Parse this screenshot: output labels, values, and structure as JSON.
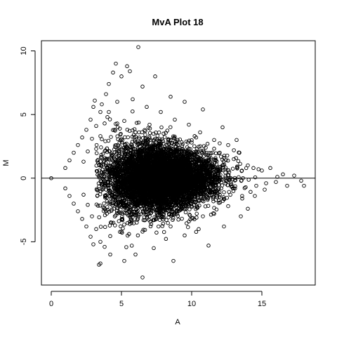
{
  "chart_data": {
    "type": "scatter",
    "title": "MvA Plot 18",
    "xlabel": "A",
    "ylabel": "M",
    "xlim": [
      -0.7,
      18.8
    ],
    "ylim": [
      -8.4,
      10.8
    ],
    "x_ticks": [
      0,
      5,
      10,
      15
    ],
    "x_tick_labels": [
      "0",
      "5",
      "10",
      "15"
    ],
    "y_ticks": [
      -5,
      0,
      5,
      10
    ],
    "y_tick_labels": [
      "-5",
      "0",
      "5",
      "10"
    ],
    "grid": false,
    "legend": "none",
    "reference_line": {
      "orientation": "horizontal",
      "y": 0
    },
    "marker": {
      "shape": "open-circle",
      "color": "#000000"
    },
    "series": [
      {
        "points": [
          [
            0,
            0
          ],
          [
            1.0,
            0.8
          ],
          [
            1.0,
            -0.8
          ],
          [
            1.3,
            1.4
          ],
          [
            1.3,
            -1.4
          ],
          [
            1.6,
            2.0
          ],
          [
            1.6,
            -2.0
          ],
          [
            1.9,
            2.6
          ],
          [
            1.9,
            -2.6
          ],
          [
            2.2,
            3.2
          ],
          [
            2.2,
            -3.2
          ],
          [
            2.5,
            3.8
          ],
          [
            2.5,
            -3.8
          ],
          [
            2.8,
            4.6
          ],
          [
            2.8,
            -4.6
          ],
          [
            3.0,
            5.6
          ],
          [
            3.0,
            -5.2
          ],
          [
            3.1,
            6.1
          ],
          [
            2.3,
            1.3
          ],
          [
            2.6,
            2.1
          ],
          [
            2.9,
            3.1
          ],
          [
            3.2,
            4.1
          ],
          [
            3.5,
            5.2
          ],
          [
            3.6,
            5.8
          ],
          [
            3.9,
            6.6
          ],
          [
            4.1,
            7.4
          ],
          [
            4.4,
            8.3
          ],
          [
            3.2,
            2.3
          ],
          [
            3.5,
            3.3
          ],
          [
            3.8,
            4.3
          ],
          [
            4.1,
            5.2
          ],
          [
            2.3,
            -1.3
          ],
          [
            2.6,
            -2.1
          ],
          [
            2.9,
            -3.0
          ],
          [
            3.2,
            -4.0
          ],
          [
            3.5,
            -5.0
          ],
          [
            3.8,
            -5.4
          ],
          [
            4.6,
            9.0
          ],
          [
            5.4,
            8.8
          ],
          [
            5.0,
            8.0
          ],
          [
            6.2,
            10.3
          ],
          [
            5.6,
            8.4
          ],
          [
            7.4,
            8.0
          ],
          [
            6.5,
            7.2
          ],
          [
            8.5,
            6.4
          ],
          [
            9.5,
            6.0
          ],
          [
            10.8,
            5.4
          ],
          [
            12.2,
            4.0
          ],
          [
            13.2,
            3.0
          ],
          [
            4.0,
            4.8
          ],
          [
            4.5,
            3.8
          ],
          [
            5.2,
            4.5
          ],
          [
            6.0,
            3.6
          ],
          [
            7.0,
            4.2
          ],
          [
            8.0,
            3.5
          ],
          [
            9.0,
            3.0
          ],
          [
            10.0,
            2.8
          ],
          [
            11.0,
            2.4
          ],
          [
            12.0,
            2.0
          ],
          [
            13.0,
            1.5
          ],
          [
            14.0,
            1.0
          ],
          [
            15.0,
            0.6
          ],
          [
            15.6,
            0.8
          ],
          [
            16.0,
            -0.3
          ],
          [
            16.8,
            -0.6
          ],
          [
            17.3,
            0.2
          ],
          [
            17.8,
            -0.2
          ],
          [
            18.0,
            -0.6
          ],
          [
            16.5,
            0.3
          ],
          [
            3.5,
            -6.7
          ],
          [
            4.2,
            -6.0
          ],
          [
            5.2,
            -6.5
          ],
          [
            6.0,
            -6.0
          ],
          [
            6.5,
            -7.8
          ],
          [
            7.3,
            -5.5
          ],
          [
            8.7,
            -6.5
          ],
          [
            9.5,
            -4.5
          ],
          [
            10.5,
            -4.0
          ],
          [
            11.2,
            -5.3
          ],
          [
            12.3,
            -3.8
          ],
          [
            13.5,
            -3.0
          ],
          [
            14.0,
            -2.4
          ],
          [
            14.5,
            -1.4
          ],
          [
            15.2,
            -0.9
          ],
          [
            4.3,
            -3.5
          ],
          [
            5.0,
            -4.2
          ],
          [
            5.6,
            -3.6
          ],
          [
            6.5,
            -4.2
          ],
          [
            7.5,
            -3.2
          ],
          [
            8.5,
            -3.8
          ],
          [
            9.8,
            -3.4
          ],
          [
            10.8,
            -3.0
          ],
          [
            11.6,
            -2.8
          ],
          [
            12.6,
            -2.2
          ],
          [
            13.6,
            -1.6
          ],
          [
            14.6,
            -0.6
          ],
          [
            4.7,
            6.0
          ],
          [
            5.8,
            6.2
          ],
          [
            6.8,
            5.6
          ],
          [
            7.8,
            5.2
          ],
          [
            8.8,
            4.6
          ],
          [
            9.8,
            4.2
          ],
          [
            10.6,
            3.6
          ],
          [
            11.6,
            3.0
          ],
          [
            12.6,
            2.6
          ],
          [
            13.4,
            2.0
          ],
          [
            14.4,
            0.8
          ],
          [
            15.3,
            -0.4
          ],
          [
            16.1,
            0.1
          ],
          [
            3.4,
            -6.8
          ]
        ]
      }
    ],
    "dense_cloud": {
      "density_peak": 1,
      "x_range": [
        3.2,
        15.2
      ],
      "center_x": 7.8,
      "spread_m_at_low_A": 3.0,
      "spread_m_at_high_A": 1.3
    }
  }
}
